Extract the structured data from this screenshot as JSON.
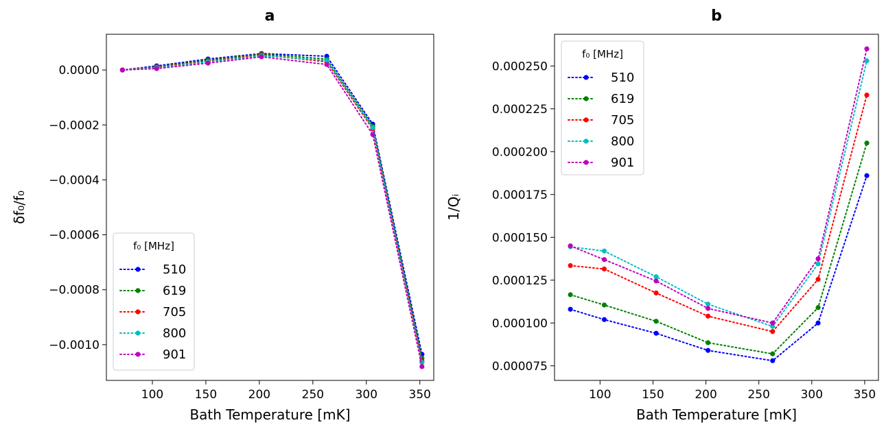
{
  "chart_data": [
    {
      "type": "line",
      "title": "a",
      "xlabel": "Bath Temperature [mK]",
      "ylabel": "δf₀/f₀",
      "xlim": [
        57,
        363
      ],
      "ylim": [
        -0.00113,
        0.00013
      ],
      "x_ticks": [
        100,
        150,
        200,
        250,
        300,
        350
      ],
      "x_tick_labels": [
        "100",
        "150",
        "200",
        "250",
        "300",
        "350"
      ],
      "y_ticks": [
        0.0,
        -0.0002,
        -0.0004,
        -0.0006,
        -0.0008,
        -0.001
      ],
      "y_tick_labels": [
        "0.0000",
        "−0.0002",
        "−0.0004",
        "−0.0006",
        "−0.0008",
        "−0.0010"
      ],
      "grid": false,
      "legend": {
        "title": "f₀ [MHz]",
        "placement": "lower-left"
      },
      "x": [
        72,
        104,
        152,
        202,
        263,
        306,
        352
      ],
      "series": [
        {
          "name": "510",
          "color": "#0000ff",
          "values": [
            0.0,
            1.5e-05,
            4e-05,
            6e-05,
            5e-05,
            -0.000197,
            -0.001035
          ]
        },
        {
          "name": "619",
          "color": "#008000",
          "values": [
            0.0,
            1.2e-05,
            3.6e-05,
            5.8e-05,
            4e-05,
            -0.000205,
            -0.00105
          ]
        },
        {
          "name": "705",
          "color": "#ff0000",
          "values": [
            0.0,
            1e-05,
            3.2e-05,
            5.5e-05,
            3e-05,
            -0.000215,
            -0.00106
          ]
        },
        {
          "name": "800",
          "color": "#00bfbf",
          "values": [
            0.0,
            8e-06,
            3e-05,
            5.2e-05,
            3.5e-05,
            -0.00021,
            -0.001065
          ]
        },
        {
          "name": "901",
          "color": "#bf00bf",
          "values": [
            0.0,
            5e-06,
            2.5e-05,
            4.8e-05,
            2e-05,
            -0.000235,
            -0.00108
          ]
        }
      ]
    },
    {
      "type": "line",
      "title": "b",
      "xlabel": "Bath Temperature [mK]",
      "ylabel": "1/Qᵢ",
      "xlim": [
        57,
        363
      ],
      "ylim": [
        6.65e-05,
        0.0002685
      ],
      "x_ticks": [
        100,
        150,
        200,
        250,
        300,
        350
      ],
      "x_tick_labels": [
        "100",
        "150",
        "200",
        "250",
        "300",
        "350"
      ],
      "y_ticks": [
        7.5e-05,
        0.0001,
        0.000125,
        0.00015,
        0.000175,
        0.0002,
        0.000225,
        0.00025
      ],
      "y_tick_labels": [
        "0.000075",
        "0.000100",
        "0.000125",
        "0.000150",
        "0.000175",
        "0.000200",
        "0.000225",
        "0.000250"
      ],
      "grid": false,
      "legend": {
        "title": "f₀ [MHz]",
        "placement": "upper-left"
      },
      "x": [
        72,
        104,
        153,
        202,
        263,
        306,
        352
      ],
      "series": [
        {
          "name": "510",
          "color": "#0000ff",
          "values": [
            0.000108,
            0.000102,
            9.4e-05,
            8.4e-05,
            7.8e-05,
            0.0001,
            0.000186
          ]
        },
        {
          "name": "619",
          "color": "#008000",
          "values": [
            0.0001165,
            0.0001105,
            0.000101,
            8.85e-05,
            8.2e-05,
            0.000109,
            0.000205
          ]
        },
        {
          "name": "705",
          "color": "#ff0000",
          "values": [
            0.0001335,
            0.0001315,
            0.0001175,
            0.000104,
            9.5e-05,
            0.0001255,
            0.000233
          ]
        },
        {
          "name": "800",
          "color": "#00bfbf",
          "values": [
            0.0001445,
            0.000142,
            0.000127,
            0.000111,
            9.8e-05,
            0.0001345,
            0.000253
          ]
        },
        {
          "name": "901",
          "color": "#bf00bf",
          "values": [
            0.000145,
            0.000137,
            0.0001245,
            0.0001085,
            0.0001,
            0.0001375,
            0.00026
          ]
        }
      ]
    }
  ]
}
